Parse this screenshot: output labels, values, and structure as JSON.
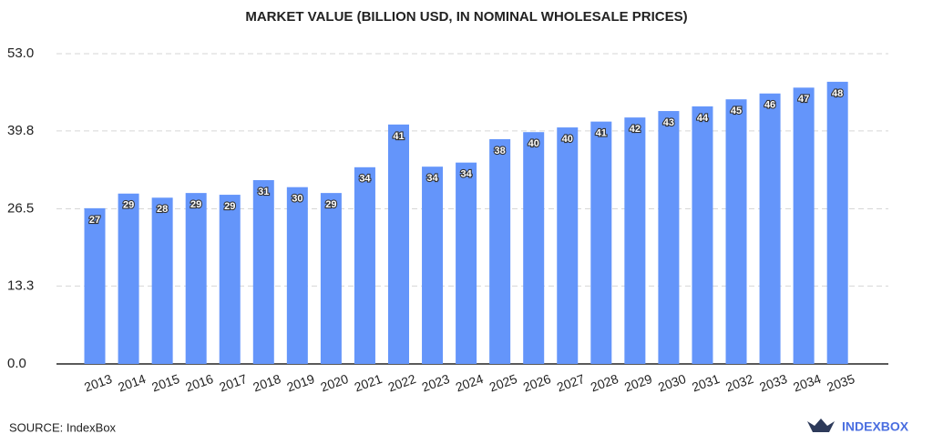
{
  "chart_data": {
    "type": "bar",
    "title": "MARKET VALUE (BILLION USD, IN NOMINAL WHOLESALE PRICES)",
    "categories": [
      "2013",
      "2014",
      "2015",
      "2016",
      "2017",
      "2018",
      "2019",
      "2020",
      "2021",
      "2022",
      "2023",
      "2024",
      "2025",
      "2026",
      "2027",
      "2028",
      "2029",
      "2030",
      "2031",
      "2032",
      "2033",
      "2034",
      "2035"
    ],
    "values": [
      26.6,
      29.1,
      28.4,
      29.2,
      28.9,
      31.4,
      30.2,
      29.2,
      33.6,
      40.9,
      33.7,
      34.4,
      38.4,
      39.6,
      40.4,
      41.4,
      42.1,
      43.2,
      44.0,
      45.2,
      46.2,
      47.2,
      48.2
    ],
    "value_labels": [
      "27",
      "29",
      "28",
      "29",
      "29",
      "31",
      "30",
      "29",
      "34",
      "41",
      "34",
      "34",
      "38",
      "40",
      "40",
      "41",
      "42",
      "43",
      "44",
      "45",
      "46",
      "47",
      "48"
    ],
    "color": "#6495fa",
    "ylim": [
      0,
      53
    ],
    "yticks": [
      {
        "value": 0,
        "label": "0.0"
      },
      {
        "value": 13.3,
        "label": "13.3"
      },
      {
        "value": 26.5,
        "label": "26.5"
      },
      {
        "value": 39.8,
        "label": "39.8"
      },
      {
        "value": 53,
        "label": "53.0"
      }
    ],
    "grid": true
  },
  "footer": {
    "source": "SOURCE: IndexBox",
    "brand": "INDEXBOX"
  }
}
